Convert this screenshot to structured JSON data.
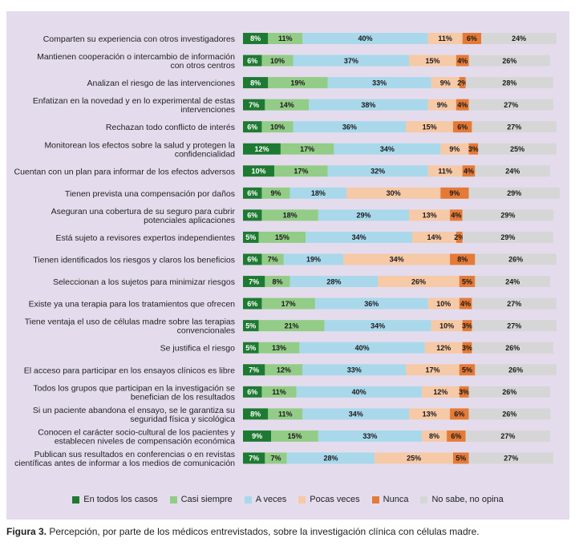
{
  "chart_data": {
    "type": "bar",
    "orientation": "horizontal-stacked-100",
    "xlim": [
      0,
      100
    ],
    "categories": [
      [
        "Comparten su experiencia con otros investigadores"
      ],
      [
        "Mantienen cooperación o intercambio de información",
        "con otros centros"
      ],
      [
        "Analizan el riesgo de las intervenciones"
      ],
      [
        "Enfatizan en la novedad y en lo experimental de estas",
        "intervenciones"
      ],
      [
        "Rechazan todo conflicto de interés"
      ],
      [
        "Monitorean los  efectos sobre la salud y protegen la",
        "confidencialidad"
      ],
      [
        "Cuentan con un plan para informar de los efectos adversos"
      ],
      [
        "Tienen prevista una compensación por daños"
      ],
      [
        "Aseguran una cobertura de su seguro para cubrir",
        "potenciales aplicaciones"
      ],
      [
        "Está sujeto a revisores expertos independientes"
      ],
      [
        "Tienen identificados los riesgos y claros los beneficios"
      ],
      [
        "Seleccionan a los sujetos para minimizar riesgos"
      ],
      [
        "Existe ya una terapia para los tratamientos que ofrecen"
      ],
      [
        "Tiene ventaja el uso de células madre sobre las terapias",
        "convencionales"
      ],
      [
        "Se justifica el riesgo"
      ],
      [
        "El acceso para participar en los ensayos clínicos es libre"
      ],
      [
        "Todos los grupos que participan en la investigación se",
        "benefician de los resultados"
      ],
      [
        "Si un paciente abandona el ensayo, se le garantiza su",
        "seguridad física y sicológica"
      ],
      [
        "Conocen el carácter socio-cultural de los pacientes y",
        "establecen niveles de compensación económica"
      ],
      [
        "Publican sus resultados en conferencias o en revistas",
        "científicas antes de informar a los medios de comunicación"
      ]
    ],
    "series": [
      {
        "name": "En todos los casos",
        "color": "#1e7a32",
        "label_color": "#ffffff",
        "values": [
          8,
          6,
          8,
          7,
          6,
          12,
          10,
          6,
          6,
          5,
          6,
          7,
          6,
          5,
          5,
          7,
          6,
          8,
          9,
          7
        ]
      },
      {
        "name": "Casi siempre",
        "color": "#93cc87",
        "label_color": "#1a1a1a",
        "values": [
          11,
          10,
          19,
          14,
          10,
          17,
          17,
          9,
          18,
          15,
          7,
          8,
          17,
          21,
          13,
          12,
          11,
          11,
          15,
          7
        ]
      },
      {
        "name": "A veces",
        "color": "#a9d8eb",
        "label_color": "#1a1a1a",
        "values": [
          40,
          37,
          33,
          38,
          36,
          34,
          32,
          18,
          29,
          34,
          19,
          28,
          36,
          34,
          40,
          33,
          40,
          34,
          33,
          28
        ]
      },
      {
        "name": "Pocas veces",
        "color": "#f6c9a7",
        "label_color": "#1a1a1a",
        "values": [
          11,
          15,
          9,
          9,
          15,
          9,
          11,
          30,
          13,
          14,
          34,
          26,
          10,
          10,
          12,
          17,
          12,
          13,
          8,
          25
        ]
      },
      {
        "name": "Nunca",
        "color": "#e57a36",
        "label_color": "#1a1a1a",
        "values": [
          6,
          4,
          2,
          4,
          6,
          3,
          4,
          9,
          4,
          2,
          8,
          5,
          4,
          3,
          3,
          5,
          3,
          6,
          6,
          5
        ]
      },
      {
        "name": "No sabe, no opina",
        "color": "#d6d6d6",
        "label_color": "#1a1a1a",
        "values": [
          24,
          26,
          28,
          27,
          27,
          25,
          24,
          29,
          29,
          29,
          26,
          24,
          27,
          27,
          26,
          26,
          26,
          26,
          27,
          27
        ]
      }
    ],
    "legend_position": "bottom",
    "grid": false
  },
  "caption": {
    "label": "Figura 3.",
    "text": " Percepción, por parte de los médicos entrevistados, sobre la investigación clínica con células madre."
  }
}
